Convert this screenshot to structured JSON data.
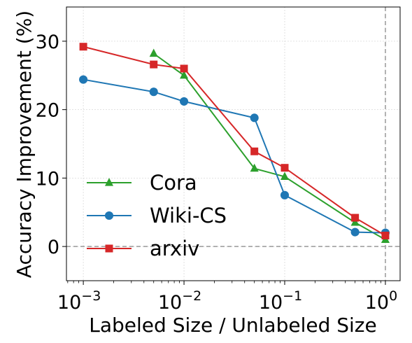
{
  "chart_data": {
    "type": "line",
    "xlabel": "Labeled Size / Unlabeled Size",
    "ylabel": "Accuracy Improvement (%)",
    "xscale": "log",
    "xlim": [
      0.00068,
      1.4
    ],
    "ylim": [
      -5,
      35
    ],
    "grid": true,
    "legend_position": "bottom-left",
    "reference_lines": {
      "y": 0,
      "x": 1
    },
    "x_ticks": [
      {
        "value": 0.001,
        "base": "10",
        "exp": "−3"
      },
      {
        "value": 0.01,
        "base": "10",
        "exp": "−2"
      },
      {
        "value": 0.1,
        "base": "10",
        "exp": "−1"
      },
      {
        "value": 1,
        "base": "10",
        "exp": "0"
      }
    ],
    "y_ticks": [
      {
        "value": 0,
        "label": "0"
      },
      {
        "value": 10,
        "label": "10"
      },
      {
        "value": 20,
        "label": "20"
      },
      {
        "value": 30,
        "label": "30"
      }
    ],
    "series": [
      {
        "name": "Cora",
        "color": "#2ca02c",
        "marker": "triangle",
        "x": [
          0.005,
          0.01,
          0.05,
          0.1,
          0.5,
          1
        ],
        "y": [
          28.2,
          25.0,
          11.4,
          10.2,
          3.5,
          1.0
        ]
      },
      {
        "name": "Wiki-CS",
        "color": "#1f77b4",
        "marker": "circle",
        "x": [
          0.001,
          0.005,
          0.01,
          0.05,
          0.1,
          0.5,
          1
        ],
        "y": [
          24.4,
          22.6,
          21.2,
          18.8,
          7.5,
          2.1,
          2.0
        ]
      },
      {
        "name": "arxiv",
        "color": "#d62728",
        "marker": "square",
        "x": [
          0.001,
          0.005,
          0.01,
          0.05,
          0.1,
          0.5,
          1
        ],
        "y": [
          29.2,
          26.6,
          26.0,
          13.9,
          11.5,
          4.2,
          1.6
        ]
      }
    ]
  }
}
